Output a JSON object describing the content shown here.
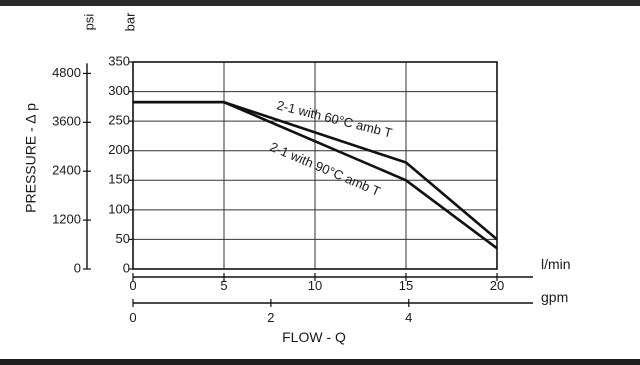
{
  "chart_data": {
    "type": "line",
    "x_primary": {
      "unit": "l/min",
      "ticks": [
        0,
        5,
        10,
        15,
        20
      ],
      "range": [
        0,
        20
      ]
    },
    "x_secondary": {
      "unit": "gpm",
      "ticks": [
        0,
        2,
        4
      ],
      "range_max": 5.28
    },
    "xlabel": "FLOW - Q",
    "y_primary": {
      "unit": "bar",
      "ticks": [
        0,
        50,
        100,
        150,
        200,
        250,
        300,
        350
      ],
      "range": [
        0,
        350
      ]
    },
    "y_secondary": {
      "unit": "psi",
      "ticks": [
        0,
        1200,
        2400,
        3600,
        4800
      ],
      "bar_per_psi": 0.0689
    },
    "ylabel": "PRESSURE - ∆ p",
    "grid": true,
    "series": [
      {
        "name": "2-1 with 60°C amb T",
        "x": [
          0,
          5,
          15,
          20
        ],
        "y": [
          282,
          282,
          180,
          50
        ]
      },
      {
        "name": "2-1 with 90°C amb T",
        "x": [
          0,
          5,
          15,
          20
        ],
        "y": [
          282,
          282,
          150,
          35
        ]
      }
    ]
  }
}
